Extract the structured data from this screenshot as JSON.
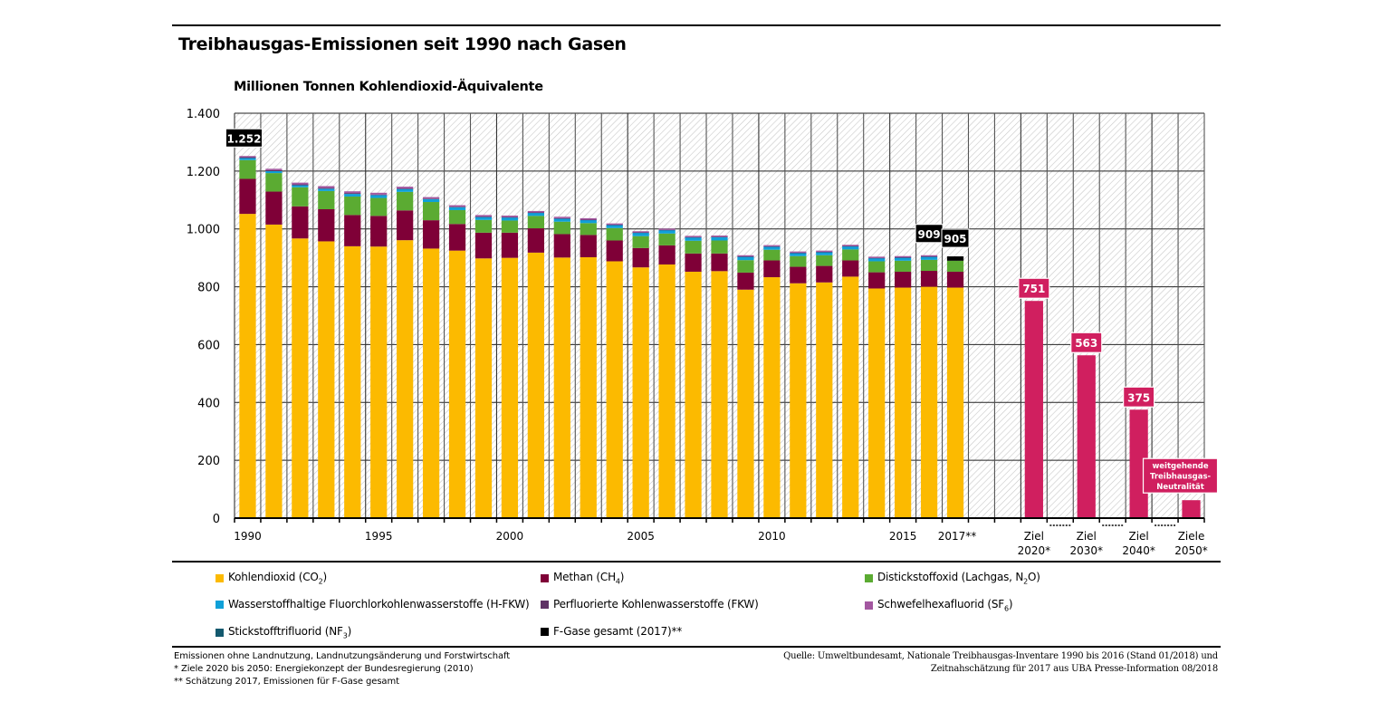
{
  "title": "Treibhausgas-Emissionen seit 1990 nach Gasen",
  "chart_data": {
    "type": "bar",
    "stacked": true,
    "title": "Treibhausgas-Emissionen seit 1990 nach Gasen",
    "ylabel": "Millionen Tonnen Kohlendioxid-Äquivalente",
    "xlabel": "",
    "ylim": [
      0,
      1400
    ],
    "yticks": [
      0,
      200,
      400,
      600,
      800,
      1000,
      1200,
      1400
    ],
    "ytick_labels": [
      "0",
      "200",
      "400",
      "600",
      "800",
      "1.000",
      "1.200",
      "1.400"
    ],
    "grid": true,
    "categories": [
      "1990",
      "1991",
      "1992",
      "1993",
      "1994",
      "1995",
      "1996",
      "1997",
      "1998",
      "1999",
      "2000",
      "2001",
      "2002",
      "2003",
      "2004",
      "2005",
      "2006",
      "2007",
      "2008",
      "2009",
      "2010",
      "2011",
      "2012",
      "2013",
      "2014",
      "2015",
      "2016",
      "2017**"
    ],
    "xtick_labels": [
      {
        "index": 0,
        "label": "1990"
      },
      {
        "index": 5,
        "label": "1995"
      },
      {
        "index": 10,
        "label": "2000"
      },
      {
        "index": 15,
        "label": "2005"
      },
      {
        "index": 20,
        "label": "2010"
      },
      {
        "index": 25,
        "label": "2015"
      },
      {
        "index": 27,
        "label": "2017**"
      }
    ],
    "series": [
      {
        "name": "Kohlendioxid (CO₂)",
        "color": "#FCBA00",
        "values": [
          1052,
          1015,
          967,
          957,
          940,
          939,
          961,
          932,
          925,
          898,
          900,
          918,
          901,
          902,
          888,
          867,
          877,
          852,
          854,
          790,
          833,
          812,
          815,
          835,
          794,
          797,
          800,
          797
        ]
      },
      {
        "name": "Methan (CH₄)",
        "color": "#7F0037",
        "values": [
          121,
          114,
          111,
          111,
          108,
          106,
          103,
          98,
          92,
          89,
          87,
          84,
          81,
          77,
          72,
          67,
          66,
          63,
          61,
          59,
          58,
          57,
          57,
          56,
          56,
          55,
          55,
          55
        ]
      },
      {
        "name": "Distickstoffoxid (Lachgas, N₂O)",
        "color": "#5BAB32",
        "values": [
          65,
          64,
          66,
          63,
          64,
          62,
          64,
          63,
          48,
          44,
          42,
          43,
          43,
          41,
          43,
          41,
          41,
          44,
          45,
          43,
          37,
          37,
          37,
          38,
          38,
          38,
          38,
          38
        ]
      },
      {
        "name": "Wasserstoffhaltige Fluorchlorkohlenwasserstoffe (H-FKW)",
        "color": "#0FA0D8",
        "values": [
          7,
          7,
          7,
          8,
          9,
          10,
          10,
          10,
          10,
          10,
          11,
          11,
          11,
          11,
          11,
          12,
          12,
          12,
          12,
          12,
          11,
          11,
          11,
          11,
          11,
          11,
          11,
          0
        ]
      },
      {
        "name": "Perfluorierte Kohlenwasserstoffe (FKW)",
        "color": "#5F3265",
        "values": [
          3,
          3,
          3,
          3,
          3,
          2,
          2,
          2,
          2,
          2,
          1,
          1,
          1,
          1,
          1,
          1,
          1,
          1,
          1,
          1,
          1,
          1,
          1,
          1,
          1,
          1,
          1,
          0
        ]
      },
      {
        "name": "Schwefelhexafluorid (SF₆)",
        "color": "#A357A0",
        "values": [
          4,
          5,
          6,
          6,
          6,
          6,
          6,
          5,
          5,
          5,
          5,
          5,
          5,
          5,
          4,
          4,
          4,
          4,
          4,
          4,
          4,
          4,
          4,
          4,
          4,
          4,
          4,
          0
        ]
      },
      {
        "name": "Stickstofftrifluorid (NF₃)",
        "color": "#13596E",
        "values": [
          0,
          0,
          0,
          0,
          0,
          0,
          0,
          0,
          0,
          0,
          0,
          0,
          0,
          0,
          0,
          0,
          0,
          0,
          0,
          0,
          0,
          0,
          0,
          0,
          0,
          0,
          0,
          0
        ]
      },
      {
        "name": "F-Gase gesamt (2017)**",
        "color": "#000000",
        "values": [
          0,
          0,
          0,
          0,
          0,
          0,
          0,
          0,
          0,
          0,
          0,
          0,
          0,
          0,
          0,
          0,
          0,
          0,
          0,
          0,
          0,
          0,
          0,
          0,
          0,
          0,
          0,
          15
        ]
      }
    ],
    "annotations": [
      {
        "category": "1990",
        "label": "1.252",
        "value": 1252
      },
      {
        "category": "2016",
        "label": "909",
        "value": 909
      },
      {
        "category": "2017**",
        "label": "905",
        "value": 905
      }
    ],
    "targets": {
      "color": "#D01F5F",
      "items": [
        {
          "label_line1": "Ziel",
          "label_line2": "2020*",
          "value": 751,
          "value_label": "751"
        },
        {
          "label_line1": "Ziel",
          "label_line2": "2030*",
          "value": 563,
          "value_label": "563"
        },
        {
          "label_line1": "Ziel",
          "label_line2": "2040*",
          "value": 375,
          "value_label": "375"
        },
        {
          "label_line1": "Ziele",
          "label_line2": "2050*",
          "value": 62,
          "value_label_lines": [
            "weitgehende",
            "Treibhausgas-",
            "Neutralität"
          ]
        }
      ]
    },
    "legend_position": "bottom"
  },
  "legend": [
    {
      "name": "Kohlendioxid (CO",
      "sub": "2",
      "tail": ")",
      "color": "#FCBA00"
    },
    {
      "name": "Methan (CH",
      "sub": "4",
      "tail": ")",
      "color": "#7F0037"
    },
    {
      "name": "Distickstoffoxid (Lachgas, N",
      "sub": "2",
      "tail": "O)",
      "color": "#5BAB32"
    },
    {
      "name": "Wasserstoffhaltige Fluorchlorkohlenwasserstoffe (H-FKW)",
      "sub": "",
      "tail": "",
      "color": "#0FA0D8"
    },
    {
      "name": "Perfluorierte Kohlenwasserstoffe (FKW)",
      "sub": "",
      "tail": "",
      "color": "#5F3265"
    },
    {
      "name": "Schwefelhexafluorid (SF",
      "sub": "6",
      "tail": ")",
      "color": "#A357A0"
    },
    {
      "name": "Stickstofftrifluorid (NF",
      "sub": "3",
      "tail": ")",
      "color": "#13596E"
    },
    {
      "name": "F-Gase gesamt (2017)**",
      "sub": "",
      "tail": "",
      "color": "#000000"
    }
  ],
  "footnotes": [
    "Emissionen ohne Landnutzung, Landnutzungsänderung und Forstwirtschaft",
    "* Ziele 2020 bis 2050: Energiekonzept der Bundesregierung (2010)",
    "** Schätzung 2017, Emissionen für F-Gase gesamt"
  ],
  "source": [
    "Quelle: Umweltbundesamt, Nationale Treibhausgas-Inventare 1990 bis 2016 (Stand 01/2018) und",
    "Zeitnahschätzung für 2017 aus UBA Presse-Information 08/2018"
  ]
}
